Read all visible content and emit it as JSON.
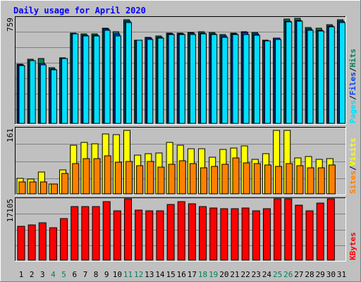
{
  "title": "Daily usage for April 2020",
  "colors": {
    "background": "#c0c0c0",
    "panel": "#c0c0c0",
    "title": "#0000ff",
    "hits": "#00805c",
    "files": "#0040ff",
    "pages": "#00e0ff",
    "visits": "#ffff00",
    "sites": "#ff8000",
    "kbytes": "#ff0000",
    "weekend_label": "#00805c",
    "weekday_label": "#000000"
  },
  "chart_data": [
    {
      "type": "bar",
      "name": "hits-files-pages",
      "max_label": "759",
      "ylim": [
        0,
        759
      ],
      "legend": [
        "Pages",
        "Files",
        "Hits"
      ],
      "legend_separator": "/",
      "categories": [
        "1",
        "2",
        "3",
        "4",
        "5",
        "6",
        "7",
        "8",
        "9",
        "10",
        "11",
        "12",
        "13",
        "14",
        "15",
        "16",
        "17",
        "18",
        "19",
        "20",
        "21",
        "22",
        "23",
        "24",
        "25",
        "26",
        "27",
        "28",
        "29",
        "30",
        "31"
      ],
      "series": [
        {
          "name": "Hits",
          "values": [
            425,
            460,
            463,
            400,
            470,
            649,
            645,
            641,
            682,
            658,
            742,
            599,
            615,
            626,
            650,
            647,
            655,
            657,
            651,
            637,
            649,
            657,
            653,
            598,
            612,
            751,
            754,
            686,
            685,
            708,
            742
          ]
        },
        {
          "name": "Files",
          "values": [
            420,
            452,
            430,
            390,
            465,
            645,
            635,
            630,
            676,
            642,
            732,
            599,
            611,
            615,
            641,
            642,
            648,
            647,
            641,
            627,
            643,
            651,
            641,
            594,
            612,
            735,
            737,
            676,
            668,
            700,
            734
          ]
        },
        {
          "name": "Pages",
          "values": [
            415,
            448,
            421,
            387,
            463,
            643,
            627,
            628,
            669,
            625,
            722,
            599,
            600,
            614,
            640,
            640,
            637,
            643,
            639,
            619,
            638,
            640,
            634,
            590,
            600,
            730,
            732,
            670,
            664,
            692,
            724
          ]
        }
      ]
    },
    {
      "type": "bar",
      "name": "visits-sites",
      "max_label": "161",
      "ylim": [
        0,
        161
      ],
      "legend": [
        "Sites",
        "Visits"
      ],
      "legend_separator": "/",
      "categories": [
        "1",
        "2",
        "3",
        "4",
        "5",
        "6",
        "7",
        "8",
        "9",
        "10",
        "11",
        "12",
        "13",
        "14",
        "15",
        "16",
        "17",
        "18",
        "19",
        "20",
        "21",
        "22",
        "23",
        "24",
        "25",
        "26",
        "27",
        "28",
        "29",
        "30",
        "31"
      ],
      "series": [
        {
          "name": "Visits",
          "values": [
            38,
            36,
            53,
            25,
            58,
            120,
            126,
            123,
            147,
            146,
            156,
            95,
            98,
            101,
            126,
            119,
            111,
            110,
            90,
            109,
            113,
            118,
            85,
            98,
            156,
            156,
            88,
            91,
            85,
            86,
            0
          ]
        },
        {
          "name": "Sites",
          "values": [
            30,
            29,
            30,
            24,
            51,
            74,
            87,
            87,
            93,
            78,
            80,
            70,
            80,
            66,
            72,
            81,
            75,
            64,
            68,
            73,
            89,
            77,
            74,
            71,
            68,
            74,
            70,
            64,
            64,
            71,
            0
          ]
        }
      ]
    },
    {
      "type": "bar",
      "name": "kbytes",
      "max_label": "17105",
      "ylim": [
        0,
        17105
      ],
      "legend": [
        "KBytes"
      ],
      "categories": [
        "1",
        "2",
        "3",
        "4",
        "5",
        "6",
        "7",
        "8",
        "9",
        "10",
        "11",
        "12",
        "13",
        "14",
        "15",
        "16",
        "17",
        "18",
        "19",
        "20",
        "21",
        "22",
        "23",
        "24",
        "25",
        "26",
        "27",
        "28",
        "29",
        "30",
        "31"
      ],
      "series": [
        {
          "name": "KBytes",
          "values": [
            9470,
            9760,
            10470,
            8970,
            11660,
            14980,
            14930,
            14930,
            16320,
            13720,
            17105,
            14010,
            13730,
            13830,
            15600,
            16360,
            15710,
            14990,
            14570,
            14330,
            14430,
            14630,
            13720,
            14330,
            17105,
            17105,
            15360,
            13820,
            15960,
            17105,
            0
          ]
        }
      ]
    }
  ],
  "weekend_days": [
    4,
    5,
    11,
    12,
    18,
    19,
    25,
    26
  ]
}
